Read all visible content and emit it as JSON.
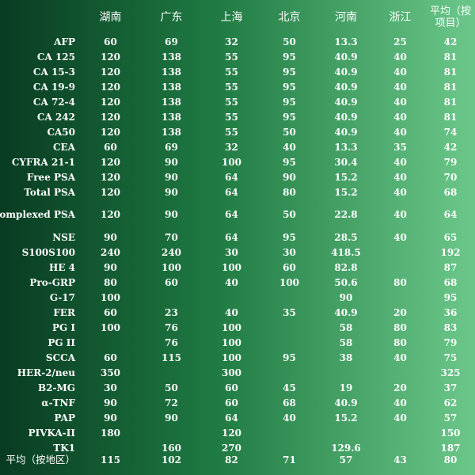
{
  "table": {
    "columns": [
      "",
      "湖南",
      "广东",
      "上海",
      "北京",
      "河南",
      "浙江",
      "平均（按项目）"
    ],
    "rows": [
      {
        "label": "AFP",
        "values": [
          "60",
          "69",
          "32",
          "50",
          "13.3",
          "25",
          "42"
        ]
      },
      {
        "label": "CA 125",
        "values": [
          "120",
          "138",
          "55",
          "95",
          "40.9",
          "40",
          "81"
        ]
      },
      {
        "label": "CA 15-3",
        "values": [
          "120",
          "138",
          "55",
          "95",
          "40.9",
          "40",
          "81"
        ]
      },
      {
        "label": "CA 19-9",
        "values": [
          "120",
          "138",
          "55",
          "95",
          "40.9",
          "40",
          "81"
        ]
      },
      {
        "label": "CA 72-4",
        "values": [
          "120",
          "138",
          "55",
          "95",
          "40.9",
          "40",
          "81"
        ]
      },
      {
        "label": "CA 242",
        "values": [
          "120",
          "138",
          "55",
          "95",
          "40.9",
          "40",
          "81"
        ]
      },
      {
        "label": "CA50",
        "values": [
          "120",
          "138",
          "55",
          "50",
          "40.9",
          "40",
          "74"
        ]
      },
      {
        "label": "CEA",
        "values": [
          "60",
          "69",
          "32",
          "40",
          "13.3",
          "35",
          "42"
        ]
      },
      {
        "label": "CYFRA 21-1",
        "values": [
          "120",
          "90",
          "100",
          "95",
          "30.4",
          "40",
          "79"
        ]
      },
      {
        "label": "Free PSA",
        "values": [
          "120",
          "90",
          "64",
          "90",
          "15.2",
          "40",
          "70"
        ]
      },
      {
        "label": "Total PSA",
        "values": [
          "120",
          "90",
          "64",
          "80",
          "15.2",
          "40",
          "68"
        ]
      },
      {
        "label": "Complexed PSA",
        "values": [
          "120",
          "90",
          "64",
          "50",
          "22.8",
          "40",
          "64"
        ]
      },
      {
        "label": "NSE",
        "values": [
          "90",
          "70",
          "64",
          "95",
          "28.5",
          "40",
          "65"
        ]
      },
      {
        "label": "S100S100",
        "values": [
          "240",
          "240",
          "30",
          "30",
          "418.5",
          "",
          "192"
        ]
      },
      {
        "label": "HE 4",
        "values": [
          "90",
          "100",
          "100",
          "60",
          "82.8",
          "",
          "87"
        ]
      },
      {
        "label": "Pro-GRP",
        "values": [
          "80",
          "60",
          "40",
          "100",
          "50.6",
          "80",
          "68"
        ]
      },
      {
        "label": "G-17",
        "values": [
          "100",
          "",
          "",
          "",
          "90",
          "",
          "95"
        ]
      },
      {
        "label": "FER",
        "values": [
          "60",
          "23",
          "40",
          "35",
          "40.9",
          "20",
          "36"
        ]
      },
      {
        "label": "PG I",
        "values": [
          "100",
          "76",
          "100",
          "",
          "58",
          "80",
          "83"
        ]
      },
      {
        "label": "PG II",
        "values": [
          "",
          "76",
          "100",
          "",
          "58",
          "80",
          "79"
        ]
      },
      {
        "label": "SCCA",
        "values": [
          "60",
          "115",
          "100",
          "95",
          "38",
          "40",
          "75"
        ]
      },
      {
        "label": "HER-2/neu",
        "values": [
          "350",
          "",
          "300",
          "",
          "",
          "",
          "325"
        ]
      },
      {
        "label": "B2-MG",
        "values": [
          "30",
          "50",
          "60",
          "45",
          "19",
          "20",
          "37"
        ]
      },
      {
        "label": "α-TNF",
        "values": [
          "90",
          "72",
          "60",
          "68",
          "40.9",
          "40",
          "62"
        ]
      },
      {
        "label": "PAP",
        "values": [
          "90",
          "90",
          "64",
          "40",
          "15.2",
          "40",
          "57"
        ]
      },
      {
        "label": "PIVKA-II",
        "values": [
          "180",
          "",
          "120",
          "",
          "",
          "",
          "150"
        ]
      },
      {
        "label": "TK1",
        "values": [
          "",
          "160",
          "270",
          "",
          "129.6",
          "",
          "187"
        ]
      },
      {
        "label": "平均（按地区）",
        "values": [
          "115",
          "102",
          "82",
          "71",
          "57",
          "43",
          "80"
        ]
      }
    ]
  },
  "colors": {
    "left": "#083b22",
    "mid": "#1f7a42",
    "right": "#6cc88a"
  }
}
